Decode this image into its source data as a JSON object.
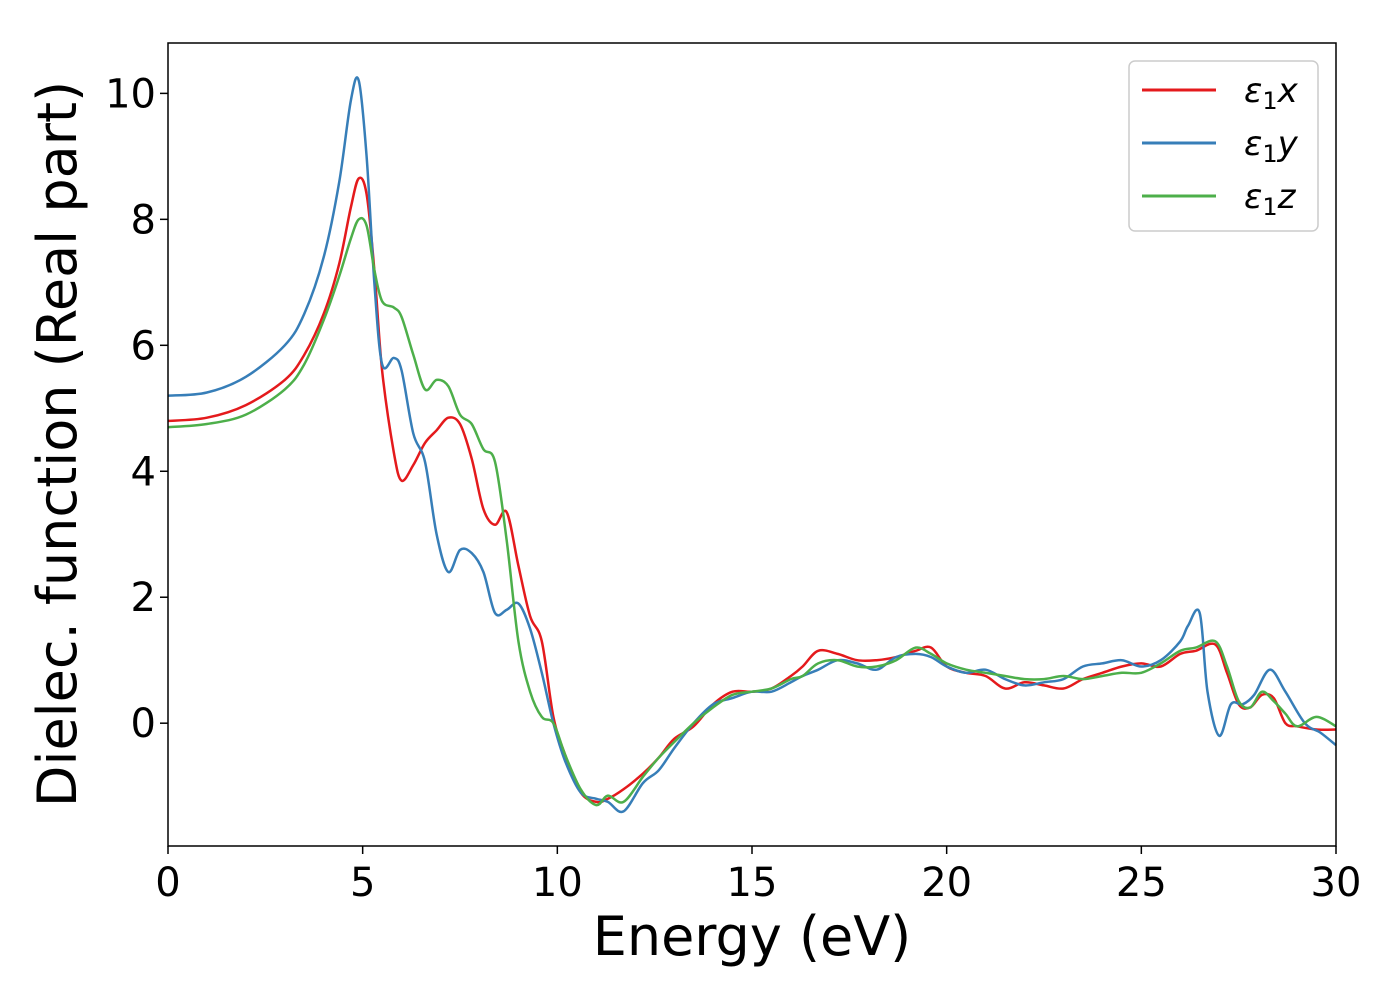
{
  "chart_data": {
    "type": "line",
    "xlabel": "Energy (eV)",
    "ylabel": "Dielec. function (Real part)",
    "xlim": [
      0,
      30
    ],
    "ylim": [
      -1.95,
      10.8
    ],
    "xticks": [
      0,
      5,
      10,
      15,
      20,
      25,
      30
    ],
    "yticks": [
      0,
      2,
      4,
      6,
      8,
      10
    ],
    "grid": false,
    "legend_position": "top-right",
    "series": [
      {
        "name": "ε₁x",
        "label_main": "ε",
        "label_sub": "1",
        "label_suffix": "x",
        "color": "#e41a1c",
        "x": [
          0,
          1,
          2,
          3,
          3.5,
          4,
          4.4,
          4.7,
          4.9,
          5.1,
          5.3,
          5.5,
          5.8,
          6.0,
          6.3,
          6.6,
          6.9,
          7.2,
          7.5,
          7.8,
          8.1,
          8.4,
          8.7,
          9.0,
          9.3,
          9.6,
          9.9,
          10.2,
          10.6,
          11.0,
          11.3,
          11.7,
          12.2,
          12.6,
          13.0,
          13.5,
          14.0,
          14.5,
          15.0,
          15.5,
          16.0,
          16.3,
          16.7,
          17.2,
          17.7,
          18.2,
          18.7,
          19.2,
          19.6,
          20.0,
          20.5,
          21.0,
          21.5,
          22.0,
          22.5,
          23.0,
          23.5,
          24.0,
          24.5,
          25.0,
          25.5,
          26.0,
          26.4,
          26.9,
          27.2,
          27.5,
          27.8,
          28.1,
          28.4,
          28.7,
          29.0,
          29.5,
          30.0
        ],
        "values": [
          4.8,
          4.85,
          5.05,
          5.45,
          5.85,
          6.5,
          7.3,
          8.2,
          8.65,
          8.4,
          7.2,
          5.6,
          4.3,
          3.85,
          4.1,
          4.45,
          4.65,
          4.85,
          4.75,
          4.2,
          3.4,
          3.15,
          3.35,
          2.5,
          1.7,
          1.3,
          0.1,
          -0.5,
          -1.1,
          -1.25,
          -1.2,
          -1.05,
          -0.8,
          -0.55,
          -0.25,
          -0.05,
          0.3,
          0.5,
          0.5,
          0.55,
          0.75,
          0.9,
          1.15,
          1.1,
          1.0,
          1.0,
          1.05,
          1.15,
          1.2,
          0.9,
          0.8,
          0.75,
          0.55,
          0.65,
          0.6,
          0.55,
          0.7,
          0.8,
          0.9,
          0.95,
          0.9,
          1.1,
          1.15,
          1.25,
          0.8,
          0.3,
          0.25,
          0.45,
          0.4,
          0.0,
          -0.05,
          -0.1,
          -0.1
        ]
      },
      {
        "name": "ε₁y",
        "label_main": "ε",
        "label_sub": "1",
        "label_suffix": "y",
        "color": "#377eb8",
        "x": [
          0,
          1,
          2,
          3,
          3.5,
          4,
          4.4,
          4.7,
          4.9,
          5.1,
          5.3,
          5.5,
          5.8,
          6.0,
          6.3,
          6.6,
          6.9,
          7.2,
          7.5,
          7.8,
          8.1,
          8.4,
          8.7,
          9.0,
          9.3,
          9.6,
          9.9,
          10.2,
          10.6,
          11.0,
          11.3,
          11.7,
          12.2,
          12.6,
          13.0,
          13.5,
          14.0,
          14.5,
          15.0,
          15.5,
          16.0,
          16.3,
          16.7,
          17.2,
          17.7,
          18.2,
          18.7,
          19.2,
          19.6,
          20.0,
          20.5,
          21.0,
          21.5,
          22.0,
          22.5,
          23.0,
          23.5,
          24.0,
          24.5,
          25.0,
          25.5,
          26.0,
          26.2,
          26.5,
          26.7,
          27.0,
          27.3,
          27.6,
          27.9,
          28.3,
          28.7,
          29.2,
          29.6,
          30.0
        ],
        "values": [
          5.2,
          5.25,
          5.5,
          6.0,
          6.5,
          7.4,
          8.6,
          9.9,
          10.2,
          9.0,
          7.0,
          5.7,
          5.8,
          5.6,
          4.6,
          4.15,
          3.0,
          2.4,
          2.75,
          2.7,
          2.4,
          1.75,
          1.8,
          1.9,
          1.5,
          0.8,
          0.0,
          -0.6,
          -1.1,
          -1.2,
          -1.25,
          -1.4,
          -0.95,
          -0.75,
          -0.4,
          0.0,
          0.3,
          0.4,
          0.5,
          0.5,
          0.65,
          0.75,
          0.85,
          1.0,
          0.95,
          0.85,
          1.05,
          1.1,
          1.05,
          0.9,
          0.8,
          0.85,
          0.7,
          0.6,
          0.65,
          0.7,
          0.9,
          0.95,
          1.0,
          0.9,
          1.0,
          1.3,
          1.55,
          1.75,
          0.5,
          -0.2,
          0.3,
          0.3,
          0.45,
          0.85,
          0.5,
          0.0,
          -0.15,
          -0.35
        ]
      },
      {
        "name": "ε₁z",
        "label_main": "ε",
        "label_sub": "1",
        "label_suffix": "z",
        "color": "#4daf4a",
        "x": [
          0,
          1,
          2,
          3,
          3.5,
          4,
          4.4,
          4.7,
          4.9,
          5.1,
          5.3,
          5.5,
          5.8,
          6.0,
          6.3,
          6.6,
          6.9,
          7.2,
          7.5,
          7.8,
          8.1,
          8.4,
          8.7,
          9.0,
          9.3,
          9.6,
          9.9,
          10.2,
          10.6,
          11.0,
          11.3,
          11.7,
          12.2,
          12.6,
          13.0,
          13.5,
          14.0,
          14.5,
          15.0,
          15.5,
          16.0,
          16.3,
          16.7,
          17.2,
          17.7,
          18.2,
          18.7,
          19.2,
          19.6,
          20.0,
          20.5,
          21.0,
          21.5,
          22.0,
          22.5,
          23.0,
          23.5,
          24.0,
          24.5,
          25.0,
          25.5,
          26.0,
          26.4,
          26.9,
          27.2,
          27.5,
          27.8,
          28.1,
          28.4,
          28.7,
          29.0,
          29.5,
          30.0
        ],
        "values": [
          4.7,
          4.75,
          4.9,
          5.3,
          5.7,
          6.4,
          7.1,
          7.7,
          8.0,
          7.9,
          7.2,
          6.7,
          6.6,
          6.45,
          5.85,
          5.3,
          5.45,
          5.35,
          4.9,
          4.75,
          4.35,
          4.15,
          2.9,
          1.3,
          0.5,
          0.1,
          0.0,
          -0.5,
          -1.05,
          -1.3,
          -1.15,
          -1.25,
          -0.85,
          -0.55,
          -0.3,
          0.0,
          0.25,
          0.45,
          0.5,
          0.55,
          0.7,
          0.75,
          0.95,
          1.0,
          0.9,
          0.9,
          1.0,
          1.2,
          1.1,
          0.95,
          0.85,
          0.8,
          0.75,
          0.7,
          0.7,
          0.75,
          0.7,
          0.75,
          0.8,
          0.8,
          0.95,
          1.15,
          1.2,
          1.3,
          0.9,
          0.35,
          0.25,
          0.5,
          0.35,
          0.15,
          -0.05,
          0.1,
          -0.05
        ]
      }
    ]
  }
}
